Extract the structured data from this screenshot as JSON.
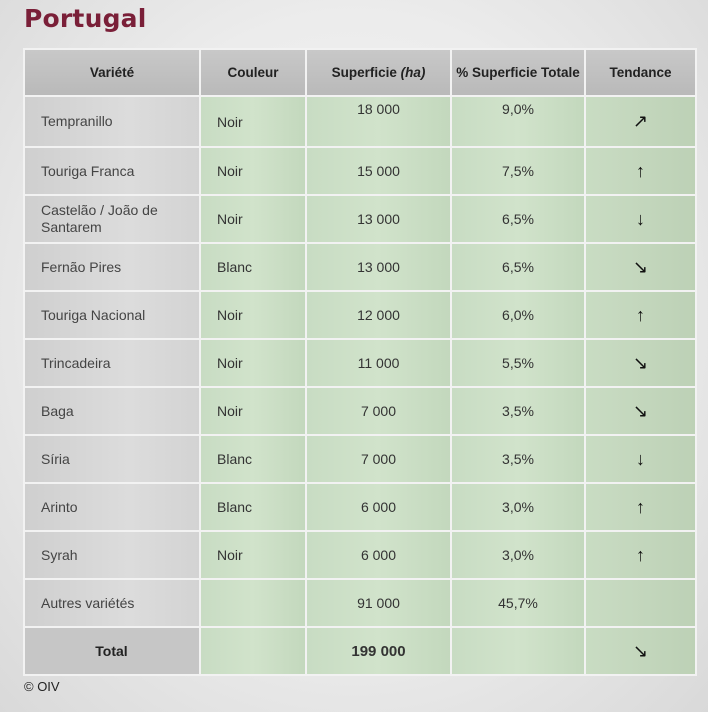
{
  "title": "Portugal",
  "headers": {
    "variety": "Variété",
    "color": "Couleur",
    "area": "Superficie",
    "area_unit": "(ha)",
    "share": "% Superficie Totale",
    "trend": "Tendance"
  },
  "rows": [
    {
      "variety": "Tempranillo",
      "color": "Noir",
      "area": "18 000",
      "share": "9,0%",
      "trend": "↗"
    },
    {
      "variety": "Touriga Franca",
      "color": "Noir",
      "area": "15 000",
      "share": "7,5%",
      "trend": "↑"
    },
    {
      "variety": "Castelão / João de Santarem",
      "color": "Noir",
      "area": "13 000",
      "share": "6,5%",
      "trend": "↓"
    },
    {
      "variety": "Fernão Pires",
      "color": "Blanc",
      "area": "13 000",
      "share": "6,5%",
      "trend": "↘"
    },
    {
      "variety": "Touriga Nacional",
      "color": "Noir",
      "area": "12 000",
      "share": "6,0%",
      "trend": "↑"
    },
    {
      "variety": "Trincadeira",
      "color": "Noir",
      "area": "11 000",
      "share": "5,5%",
      "trend": "↘"
    },
    {
      "variety": "Baga",
      "color": "Noir",
      "area": "7 000",
      "share": "3,5%",
      "trend": "↘"
    },
    {
      "variety": "Síria",
      "color": "Blanc",
      "area": "7 000",
      "share": "3,5%",
      "trend": "↓"
    },
    {
      "variety": "Arinto",
      "color": "Blanc",
      "area": "6 000",
      "share": "3,0%",
      "trend": "↑"
    },
    {
      "variety": "Syrah",
      "color": "Noir",
      "area": "6 000",
      "share": "3,0%",
      "trend": "↑"
    },
    {
      "variety": "Autres variétés",
      "color": "",
      "area": "91 000",
      "share": "45,7%",
      "trend": ""
    }
  ],
  "total": {
    "label": "Total",
    "area": "199 000",
    "trend": "↘"
  },
  "footer": "© OIV",
  "colors": {
    "title": "#7a1f38",
    "header_bg": "#c0c0c0",
    "green_cell": "#cfe2c9"
  }
}
